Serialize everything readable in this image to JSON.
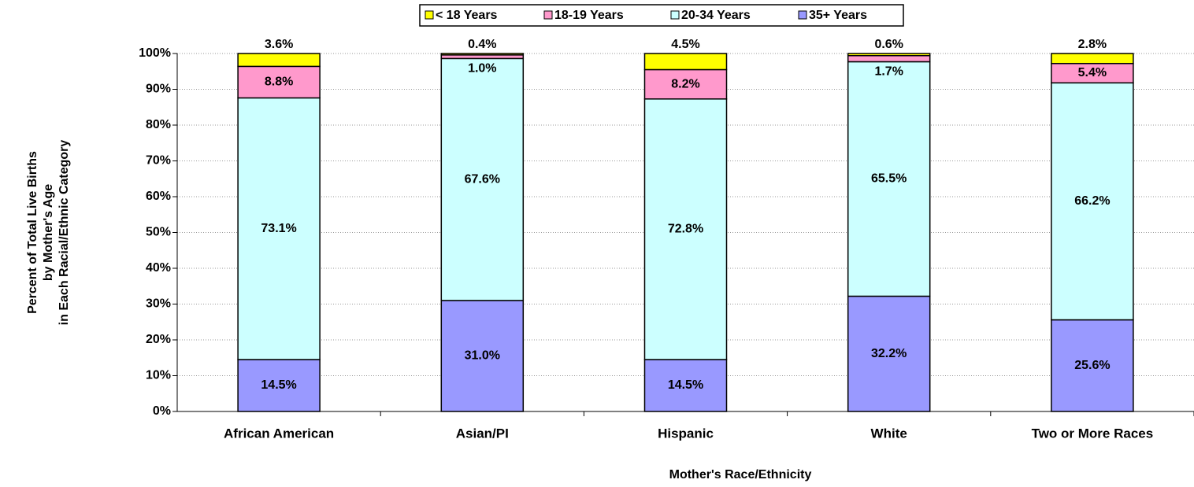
{
  "chart_data": {
    "type": "stacked_bar",
    "y_label": [
      "Percent of Total Live Births",
      "by Mother's Age",
      "in Each Racial/Ethnic Category"
    ],
    "x_label": "Mother's Race/Ethnicity",
    "categories": [
      "African American",
      "Asian/PI",
      "Hispanic",
      "White",
      "Two or More Races"
    ],
    "series": [
      {
        "name": "< 18 Years",
        "color": "#ffff00",
        "values": [
          3.6,
          0.4,
          4.5,
          0.6,
          2.8
        ],
        "value_labels": [
          "3.6%",
          "0.4%",
          "4.5%",
          "0.6%",
          "2.8%"
        ]
      },
      {
        "name": "18-19 Years",
        "color": "#ff99cc",
        "values": [
          8.8,
          1.0,
          8.2,
          1.7,
          5.4
        ],
        "value_labels": [
          "8.8%",
          "1.0%",
          "8.2%",
          "1.7%",
          "5.4%"
        ]
      },
      {
        "name": "20-34 Years",
        "color": "#ccffff",
        "values": [
          73.1,
          67.6,
          72.8,
          65.5,
          66.2
        ],
        "value_labels": [
          "73.1%",
          "67.6%",
          "72.8%",
          "65.5%",
          "66.2%"
        ]
      },
      {
        "name": "35+ Years",
        "color": "#9999ff",
        "values": [
          14.5,
          31.0,
          14.5,
          32.2,
          25.6
        ],
        "value_labels": [
          "14.5%",
          "31.0%",
          "14.5%",
          "32.2%",
          "25.6%"
        ]
      }
    ],
    "ylim": [
      0,
      100
    ],
    "yticks": [
      {
        "value": 0,
        "label": "0%"
      },
      {
        "value": 10,
        "label": "10%"
      },
      {
        "value": 20,
        "label": "20%"
      },
      {
        "value": 30,
        "label": "30%"
      },
      {
        "value": 40,
        "label": "40%"
      },
      {
        "value": 50,
        "label": "50%"
      },
      {
        "value": 60,
        "label": "60%"
      },
      {
        "value": 70,
        "label": "70%"
      },
      {
        "value": 80,
        "label": "80%"
      },
      {
        "value": 90,
        "label": "90%"
      },
      {
        "value": 100,
        "label": "100%"
      }
    ],
    "grid": true,
    "legend": "top"
  }
}
